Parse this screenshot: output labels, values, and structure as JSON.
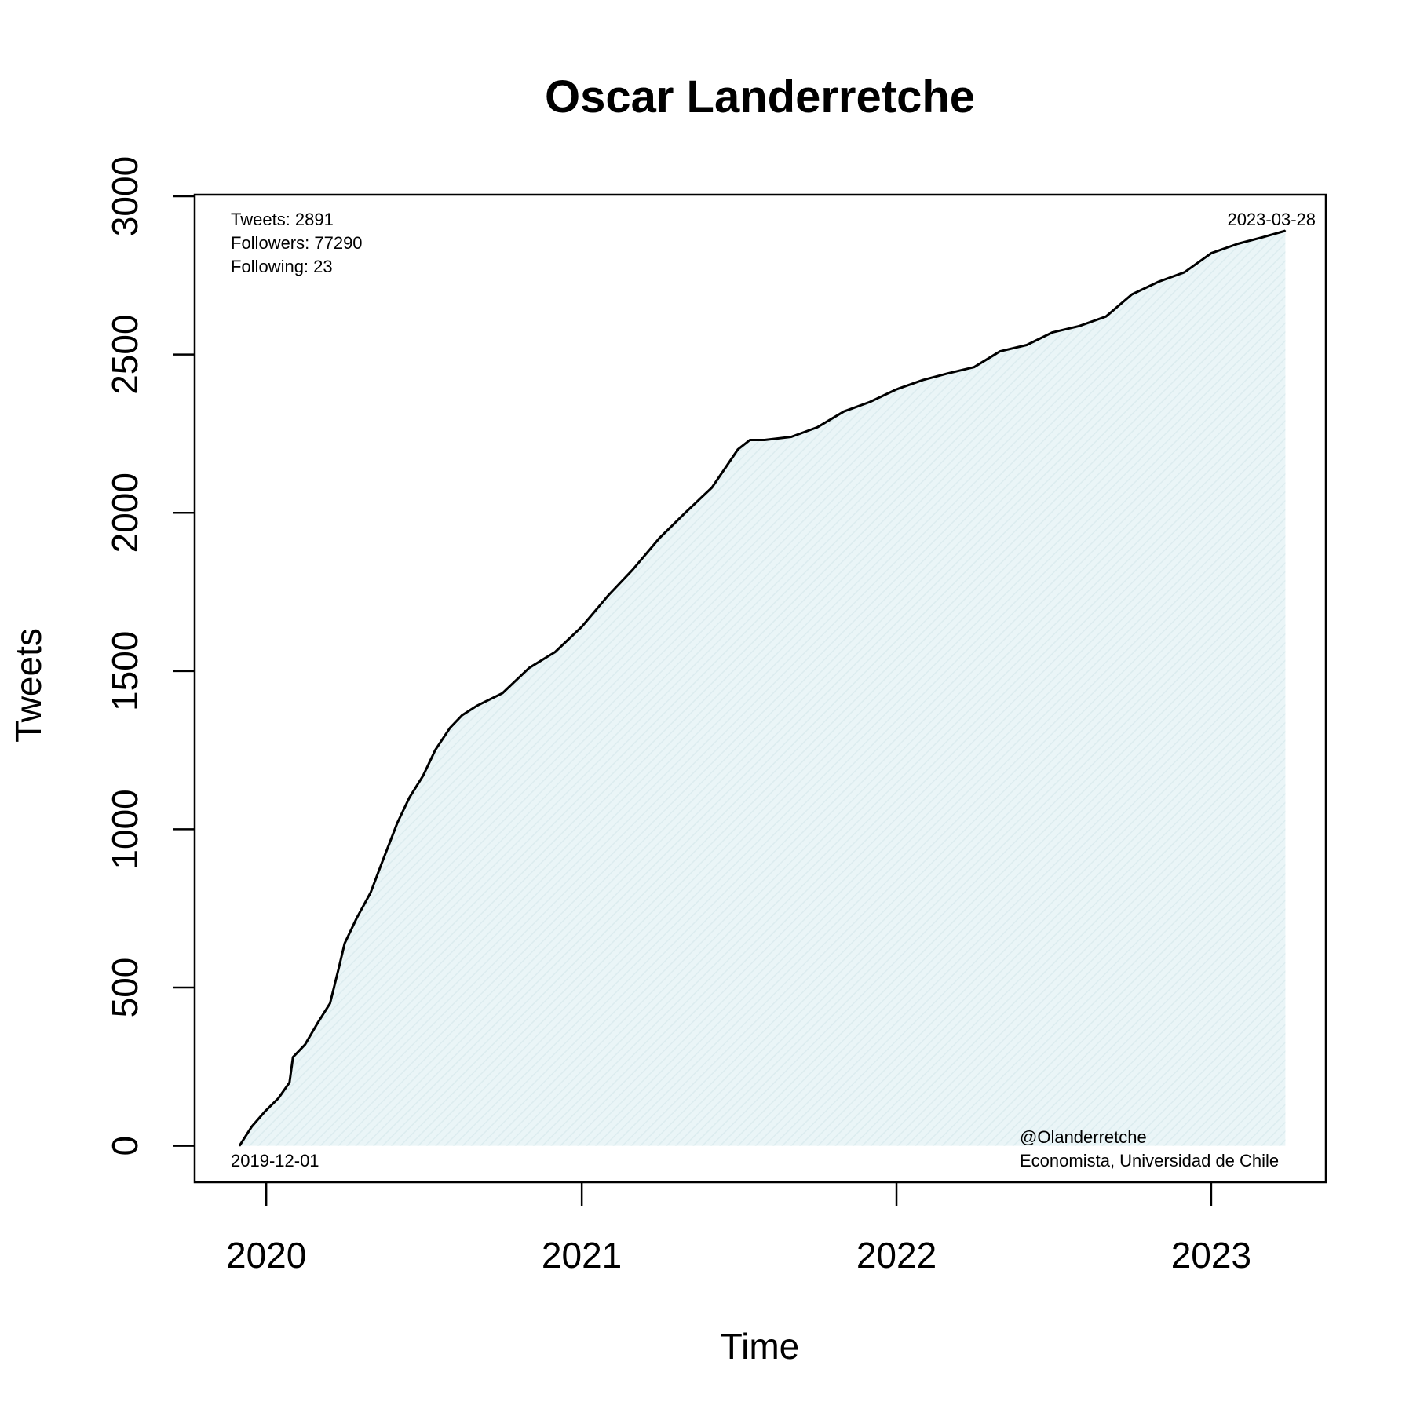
{
  "chart_data": {
    "type": "area",
    "title": "Oscar Landerretche",
    "xlabel": "Time",
    "ylabel": "Tweets",
    "x_ticks": [
      {
        "label": "2020",
        "date": "2020-01-01"
      },
      {
        "label": "2021",
        "date": "2021-01-01"
      },
      {
        "label": "2022",
        "date": "2022-01-01"
      },
      {
        "label": "2023",
        "date": "2023-01-01"
      }
    ],
    "y_ticks": [
      0,
      500,
      1000,
      1500,
      2000,
      2500,
      3000
    ],
    "xlim": [
      "2019-10-10",
      "2023-05-14"
    ],
    "ylim": [
      -115,
      3005
    ],
    "grid": false,
    "fill_color": "#eaf5f7",
    "line_color": "#000000",
    "series": [
      {
        "x": [
          "2019-12-01",
          "2019-12-15",
          "2019-12-31",
          "2020-01-15",
          "2020-01-28",
          "2020-02-01",
          "2020-02-15",
          "2020-03-01",
          "2020-03-15",
          "2020-03-25",
          "2020-04-01",
          "2020-04-15",
          "2020-05-01",
          "2020-05-15",
          "2020-06-01",
          "2020-06-15",
          "2020-07-01",
          "2020-07-15",
          "2020-08-01",
          "2020-08-15",
          "2020-09-01",
          "2020-10-01",
          "2020-11-01",
          "2020-12-01",
          "2021-01-01",
          "2021-02-01",
          "2021-03-01",
          "2021-04-01",
          "2021-05-01",
          "2021-06-01",
          "2021-07-01",
          "2021-07-15",
          "2021-08-01",
          "2021-09-01",
          "2021-10-01",
          "2021-11-01",
          "2021-12-01",
          "2022-01-01",
          "2022-02-01",
          "2022-03-01",
          "2022-04-01",
          "2022-05-01",
          "2022-06-01",
          "2022-07-01",
          "2022-08-01",
          "2022-09-01",
          "2022-10-01",
          "2022-11-01",
          "2022-12-01",
          "2023-01-01",
          "2023-02-01",
          "2023-03-01",
          "2023-03-28"
        ],
        "y": [
          0,
          60,
          110,
          150,
          200,
          280,
          320,
          390,
          450,
          560,
          640,
          720,
          800,
          900,
          1020,
          1100,
          1170,
          1250,
          1320,
          1360,
          1390,
          1430,
          1510,
          1560,
          1640,
          1740,
          1820,
          1920,
          2000,
          2080,
          2200,
          2230,
          2230,
          2240,
          2270,
          2320,
          2350,
          2390,
          2420,
          2440,
          2460,
          2510,
          2530,
          2570,
          2590,
          2620,
          2690,
          2730,
          2760,
          2820,
          2850,
          2870,
          2891
        ]
      }
    ],
    "annotations": {
      "tweets": "Tweets: 2891",
      "followers": "Followers: 77290",
      "following": "Following: 23",
      "start_date": "2019-12-01",
      "end_date": "2023-03-28",
      "handle": "@Olanderretche",
      "bio": "Economista, Universidad de Chile"
    }
  }
}
